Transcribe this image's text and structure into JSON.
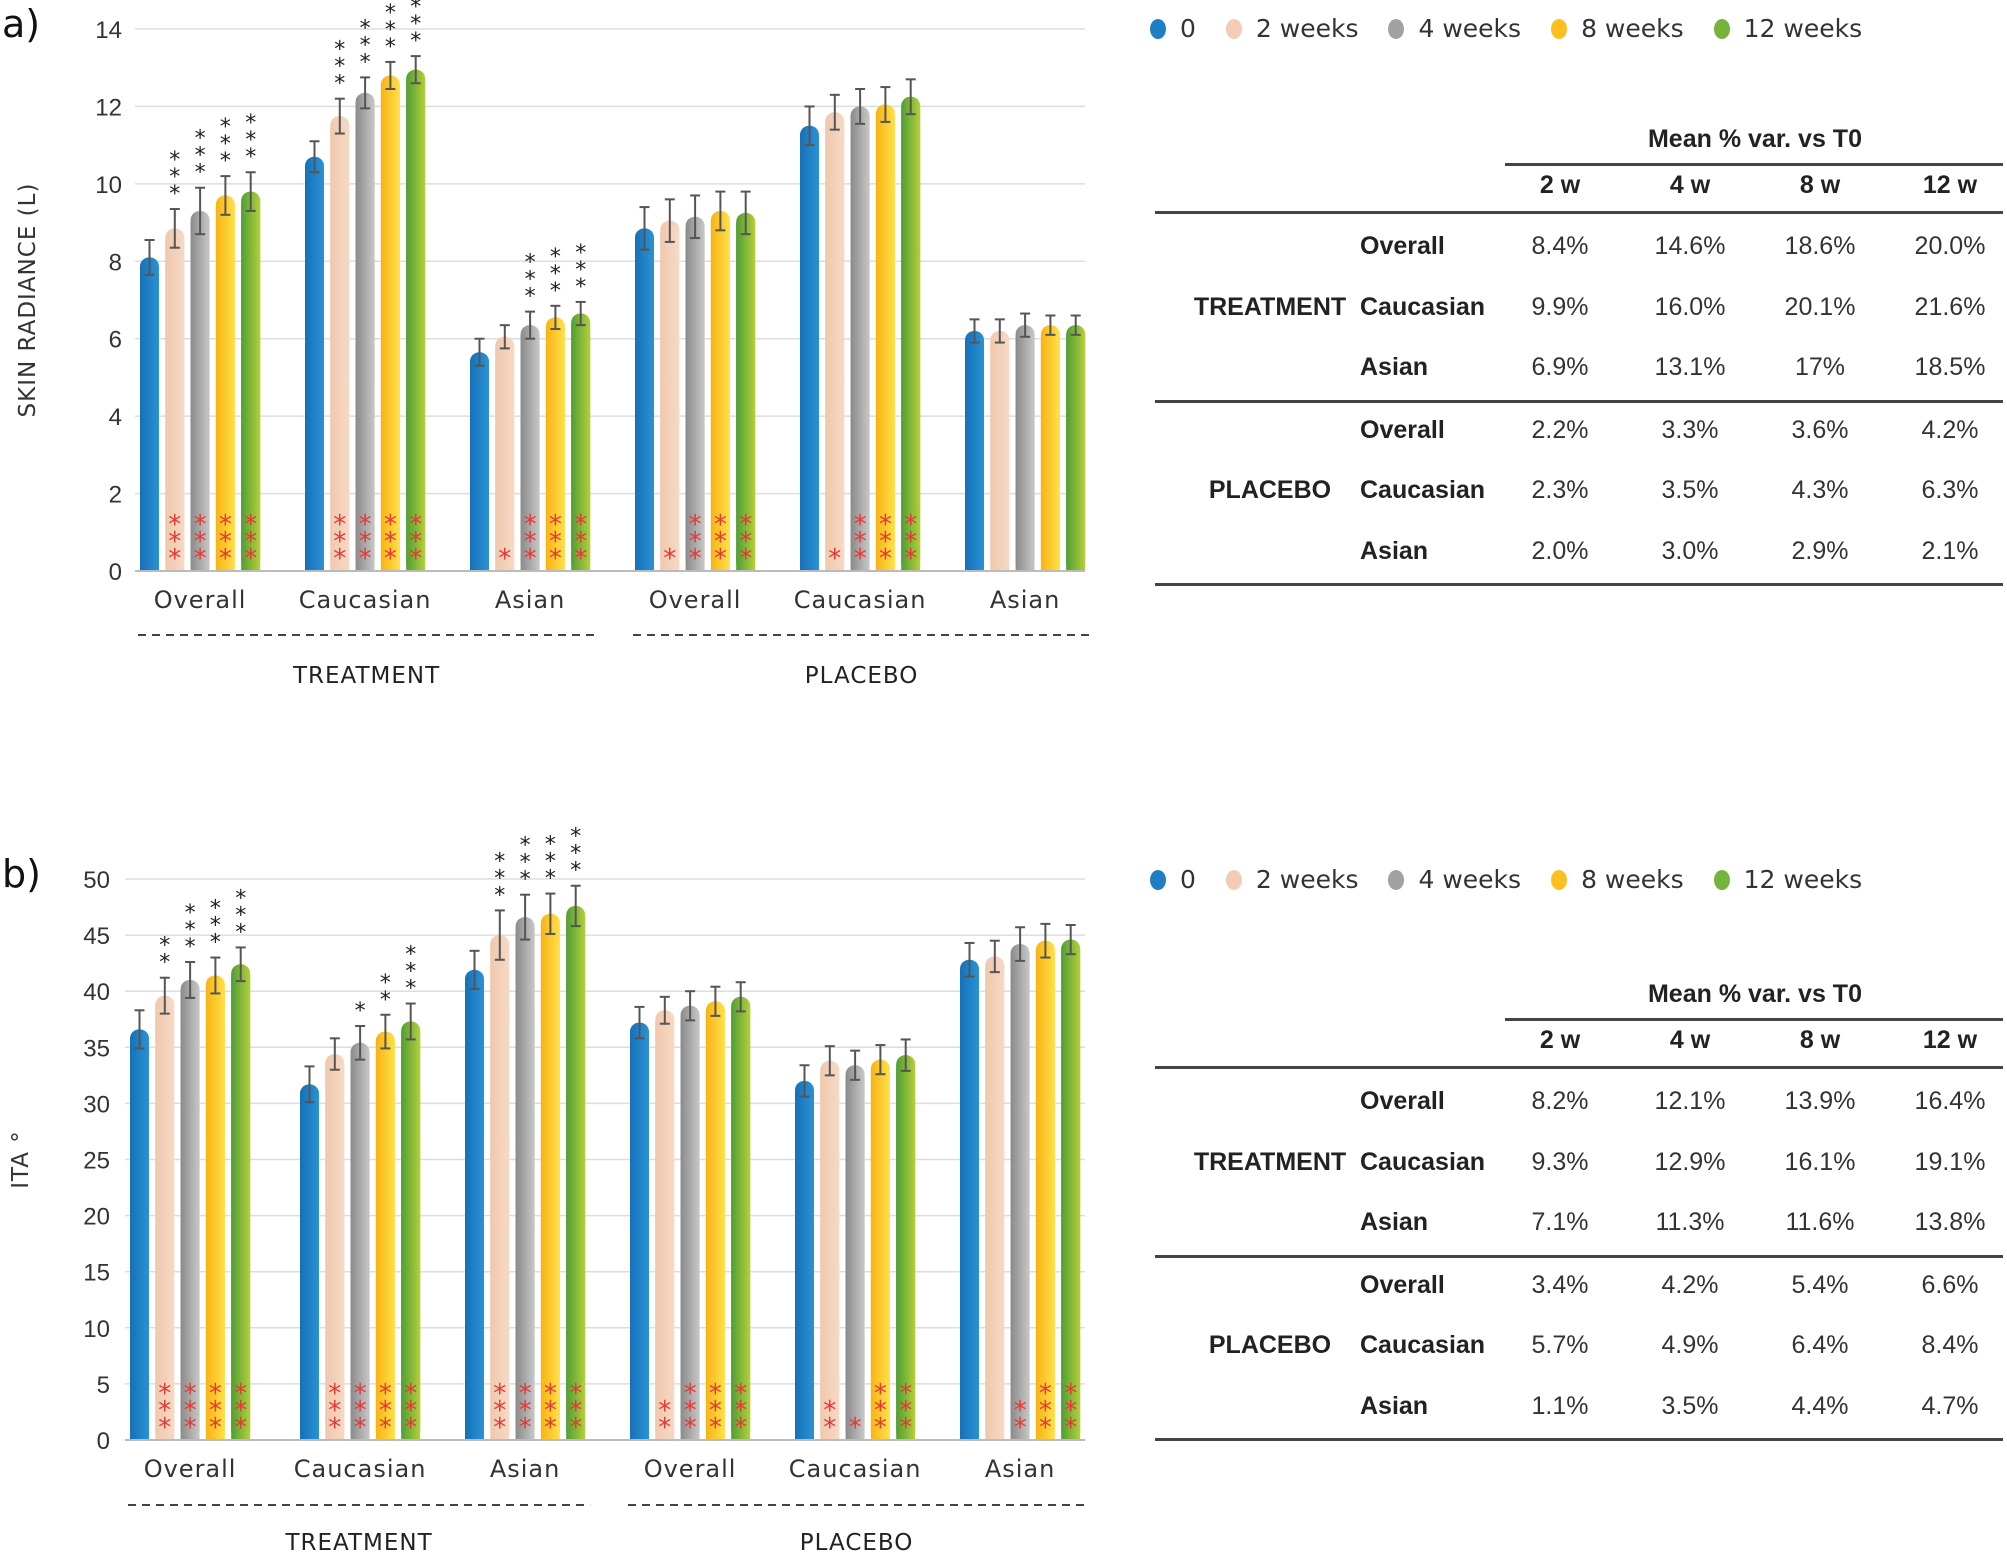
{
  "legend": [
    {
      "label": "0",
      "color": "#1e7fc4"
    },
    {
      "label": "2 weeks",
      "color": "#f2cdb3"
    },
    {
      "label": "4 weeks",
      "color": "#a2a2a2"
    },
    {
      "label": "8 weeks",
      "color": "#fbbf1e"
    },
    {
      "label": "12 weeks",
      "color": "#74b43a"
    }
  ],
  "colors": {
    "sig_vs_placebo": "#222222",
    "sig_vs_t0": "#e53935",
    "grid": "#dddddd",
    "errorbar": "#555555"
  },
  "chart_data": [
    {
      "panel_label": "a)",
      "type": "bar",
      "ylabel": "SKIN RADIANCE (L)",
      "ylim": [
        0,
        14
      ],
      "yticks": [
        0,
        2,
        4,
        6,
        8,
        10,
        12,
        14
      ],
      "grid": true,
      "legend_position": "top-right",
      "groups": [
        {
          "label": "TREATMENT",
          "categories": [
            "Overall",
            "Caucasian",
            "Asian"
          ]
        },
        {
          "label": "PLACEBO",
          "categories": [
            "Overall",
            "Caucasian",
            "Asian"
          ]
        }
      ],
      "series_names": [
        "0",
        "2 weeks",
        "4 weeks",
        "8 weeks",
        "12 weeks"
      ],
      "values": [
        [
          8.1,
          8.85,
          9.3,
          9.7,
          9.8
        ],
        [
          10.7,
          11.75,
          12.35,
          12.8,
          12.95
        ],
        [
          5.65,
          6.05,
          6.35,
          6.55,
          6.65
        ],
        [
          8.85,
          9.05,
          9.15,
          9.3,
          9.25
        ],
        [
          11.5,
          11.85,
          12.0,
          12.05,
          12.25
        ],
        [
          6.2,
          6.2,
          6.35,
          6.35,
          6.35
        ]
      ],
      "errors": [
        [
          0.45,
          0.5,
          0.6,
          0.5,
          0.5
        ],
        [
          0.4,
          0.45,
          0.4,
          0.35,
          0.35
        ],
        [
          0.35,
          0.3,
          0.35,
          0.3,
          0.3
        ],
        [
          0.55,
          0.55,
          0.55,
          0.5,
          0.55
        ],
        [
          0.5,
          0.45,
          0.45,
          0.45,
          0.45
        ],
        [
          0.3,
          0.3,
          0.3,
          0.25,
          0.25
        ]
      ],
      "sig_top": [
        [
          "",
          "***",
          "***",
          "***",
          "***"
        ],
        [
          "",
          "***",
          "***",
          "***",
          "***"
        ],
        [
          "",
          "",
          "***",
          "***",
          "***"
        ],
        [
          "",
          "",
          "",
          "",
          ""
        ],
        [
          "",
          "",
          "",
          "",
          ""
        ],
        [
          "",
          "",
          "",
          "",
          ""
        ]
      ],
      "sig_bottom": [
        [
          "",
          "***",
          "***",
          "***",
          "***"
        ],
        [
          "",
          "***",
          "***",
          "***",
          "***"
        ],
        [
          "",
          "*",
          "***",
          "***",
          "***"
        ],
        [
          "",
          "*",
          "***",
          "***",
          "***"
        ],
        [
          "",
          "*",
          "***",
          "***",
          "***"
        ],
        [
          "",
          "",
          "",
          "",
          ""
        ]
      ]
    },
    {
      "panel_label": "b)",
      "type": "bar",
      "ylabel": "ITA °",
      "ylim": [
        0,
        50
      ],
      "yticks": [
        0,
        5,
        10,
        15,
        20,
        25,
        30,
        35,
        40,
        45,
        50
      ],
      "grid": true,
      "legend_position": "top-right",
      "groups": [
        {
          "label": "TREATMENT",
          "categories": [
            "Overall",
            "Caucasian",
            "Asian"
          ]
        },
        {
          "label": "PLACEBO",
          "categories": [
            "Overall",
            "Caucasian",
            "Asian"
          ]
        }
      ],
      "series_names": [
        "0",
        "2 weeks",
        "4 weeks",
        "8 weeks",
        "12 weeks"
      ],
      "values": [
        [
          36.6,
          39.6,
          41.0,
          41.4,
          42.4
        ],
        [
          31.7,
          34.4,
          35.4,
          36.4,
          37.3
        ],
        [
          41.9,
          45.0,
          46.6,
          46.9,
          47.6
        ],
        [
          37.2,
          38.3,
          38.7,
          39.1,
          39.5
        ],
        [
          32.0,
          33.8,
          33.4,
          33.9,
          34.3
        ],
        [
          42.8,
          43.1,
          44.2,
          44.5,
          44.6
        ]
      ],
      "errors": [
        [
          1.7,
          1.6,
          1.6,
          1.6,
          1.5
        ],
        [
          1.6,
          1.4,
          1.5,
          1.5,
          1.6
        ],
        [
          1.7,
          2.2,
          2.0,
          1.8,
          1.8
        ],
        [
          1.4,
          1.2,
          1.3,
          1.3,
          1.3
        ],
        [
          1.4,
          1.3,
          1.3,
          1.3,
          1.4
        ],
        [
          1.5,
          1.4,
          1.5,
          1.5,
          1.3
        ]
      ],
      "sig_top": [
        [
          "",
          "**",
          "***",
          "***",
          "***"
        ],
        [
          "",
          "",
          "*",
          "**",
          "***"
        ],
        [
          "",
          "***",
          "***",
          "***",
          "***"
        ],
        [
          "",
          "",
          "",
          "",
          ""
        ],
        [
          "",
          "",
          "",
          "",
          ""
        ],
        [
          "",
          "",
          "",
          "",
          ""
        ]
      ],
      "sig_bottom": [
        [
          "",
          "***",
          "***",
          "***",
          "***"
        ],
        [
          "",
          "***",
          "***",
          "***",
          "***"
        ],
        [
          "",
          "***",
          "***",
          "***",
          "***"
        ],
        [
          "",
          "**",
          "***",
          "***",
          "***"
        ],
        [
          "",
          "**",
          "*",
          "***",
          "***"
        ],
        [
          "",
          "",
          "**",
          "***",
          "***"
        ]
      ]
    }
  ],
  "tables": [
    {
      "title": "Mean % var. vs T0",
      "columns": [
        "2 w",
        "4 w",
        "8 w",
        "12 w"
      ],
      "groups": [
        {
          "label": "TREATMENT",
          "rows": [
            {
              "label": "Overall",
              "values": [
                "8.4%",
                "14.6%",
                "18.6%",
                "20.0%"
              ]
            },
            {
              "label": "Caucasian",
              "values": [
                "9.9%",
                "16.0%",
                "20.1%",
                "21.6%"
              ]
            },
            {
              "label": "Asian",
              "values": [
                "6.9%",
                "13.1%",
                "17%",
                "18.5%"
              ]
            }
          ]
        },
        {
          "label": "PLACEBO",
          "rows": [
            {
              "label": "Overall",
              "values": [
                "2.2%",
                "3.3%",
                "3.6%",
                "4.2%"
              ]
            },
            {
              "label": "Caucasian",
              "values": [
                "2.3%",
                "3.5%",
                "4.3%",
                "6.3%"
              ]
            },
            {
              "label": "Asian",
              "values": [
                "2.0%",
                "3.0%",
                "2.9%",
                "2.1%"
              ]
            }
          ]
        }
      ]
    },
    {
      "title": "Mean % var. vs T0",
      "columns": [
        "2 w",
        "4 w",
        "8 w",
        "12 w"
      ],
      "groups": [
        {
          "label": "TREATMENT",
          "rows": [
            {
              "label": "Overall",
              "values": [
                "8.2%",
                "12.1%",
                "13.9%",
                "16.4%"
              ]
            },
            {
              "label": "Caucasian",
              "values": [
                "9.3%",
                "12.9%",
                "16.1%",
                "19.1%"
              ]
            },
            {
              "label": "Asian",
              "values": [
                "7.1%",
                "11.3%",
                "11.6%",
                "13.8%"
              ]
            }
          ]
        },
        {
          "label": "PLACEBO",
          "rows": [
            {
              "label": "Overall",
              "values": [
                "3.4%",
                "4.2%",
                "5.4%",
                "6.6%"
              ]
            },
            {
              "label": "Caucasian",
              "values": [
                "5.7%",
                "4.9%",
                "6.4%",
                "8.4%"
              ]
            },
            {
              "label": "Asian",
              "values": [
                "1.1%",
                "3.5%",
                "4.4%",
                "4.7%"
              ]
            }
          ]
        }
      ]
    }
  ]
}
